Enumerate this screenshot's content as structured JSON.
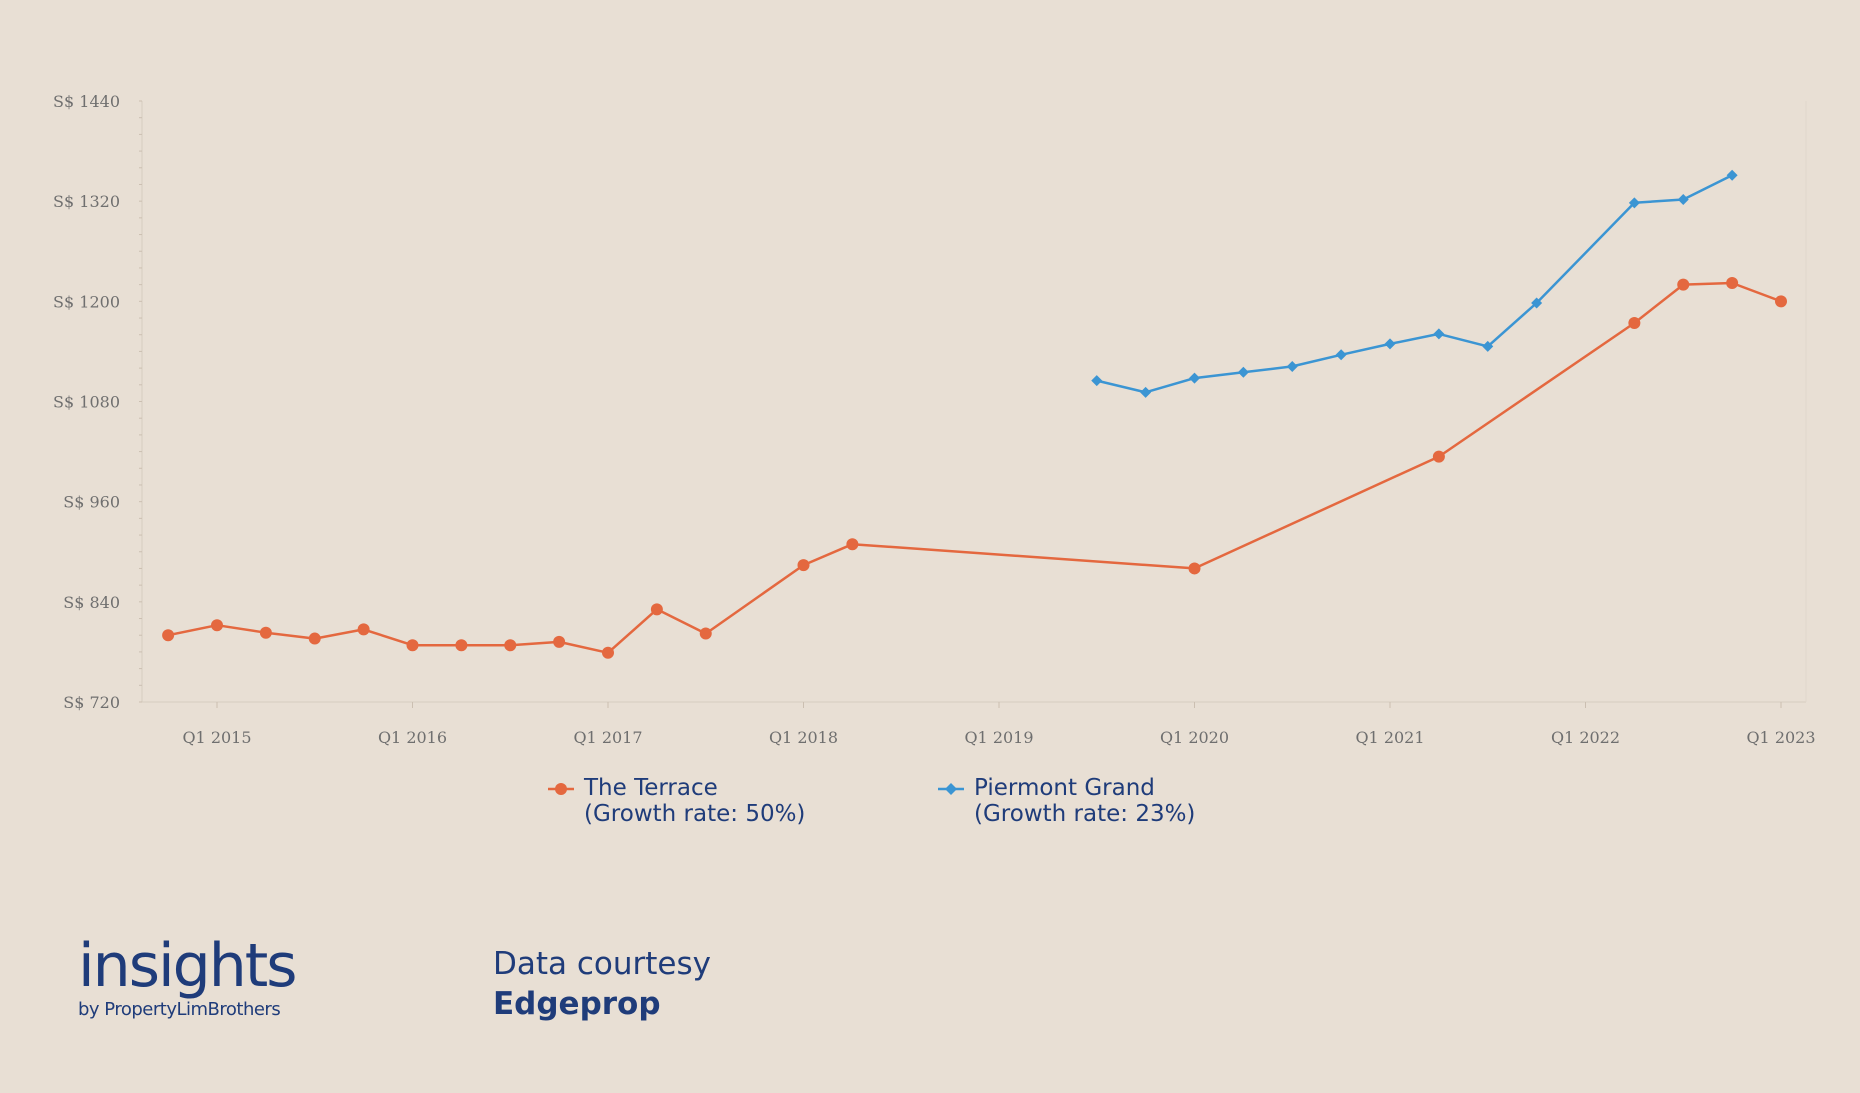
{
  "chart_data": {
    "type": "line",
    "title": "",
    "xlabel": "",
    "ylabel": "",
    "ylim": [
      720,
      1440
    ],
    "y_ticks": [
      720,
      840,
      960,
      1080,
      1200,
      1320,
      1440
    ],
    "y_tick_labels": [
      "S$ 720",
      "S$ 840",
      "S$ 960",
      "S$ 1080",
      "S$ 1200",
      "S$ 1320",
      "S$ 1440"
    ],
    "x_tick_labels": [
      "Q1 2015",
      "Q1 2016",
      "Q1 2017",
      "Q1 2018",
      "Q1 2019",
      "Q1 2020",
      "Q1 2021",
      "Q1 2022",
      "Q1 2023"
    ],
    "grid": false,
    "legend_position": "bottom",
    "series": [
      {
        "name": "The Terrace",
        "name_line2": "(Growth rate: 50%)",
        "color": "#e4683f",
        "marker": "circle",
        "x": [
          "Q4 2014",
          "Q1 2015",
          "Q2 2015",
          "Q3 2015",
          "Q4 2015",
          "Q1 2016",
          "Q2 2016",
          "Q3 2016",
          "Q4 2016",
          "Q1 2017",
          "Q2 2017",
          "Q3 2017",
          "Q1 2018",
          "Q2 2018",
          "Q1 2020",
          "Q2 2021",
          "Q2 2022",
          "Q3 2022",
          "Q4 2022",
          "Q1 2023"
        ],
        "values": [
          800,
          812,
          803,
          796,
          807,
          788,
          788,
          788,
          792,
          779,
          831,
          802,
          884,
          909,
          880,
          1014,
          1174,
          1220,
          1222,
          1200
        ]
      },
      {
        "name": "Piermont Grand",
        "name_line2": "(Growth rate: 23%)",
        "color": "#3b95d3",
        "marker": "diamond",
        "x": [
          "Q3 2019",
          "Q4 2019",
          "Q1 2020",
          "Q2 2020",
          "Q3 2020",
          "Q4 2020",
          "Q1 2021",
          "Q2 2021",
          "Q3 2021",
          "Q4 2021",
          "Q2 2022",
          "Q3 2022",
          "Q4 2022"
        ],
        "values": [
          1105,
          1091,
          1108,
          1115,
          1122,
          1136,
          1149,
          1161,
          1146,
          1198,
          1318,
          1322,
          1351
        ]
      }
    ]
  },
  "branding": {
    "wordmark": "insights",
    "byline": "by PropertyLimBrothers"
  },
  "credit": {
    "label": "Data courtesy",
    "source": "Edgeprop"
  }
}
